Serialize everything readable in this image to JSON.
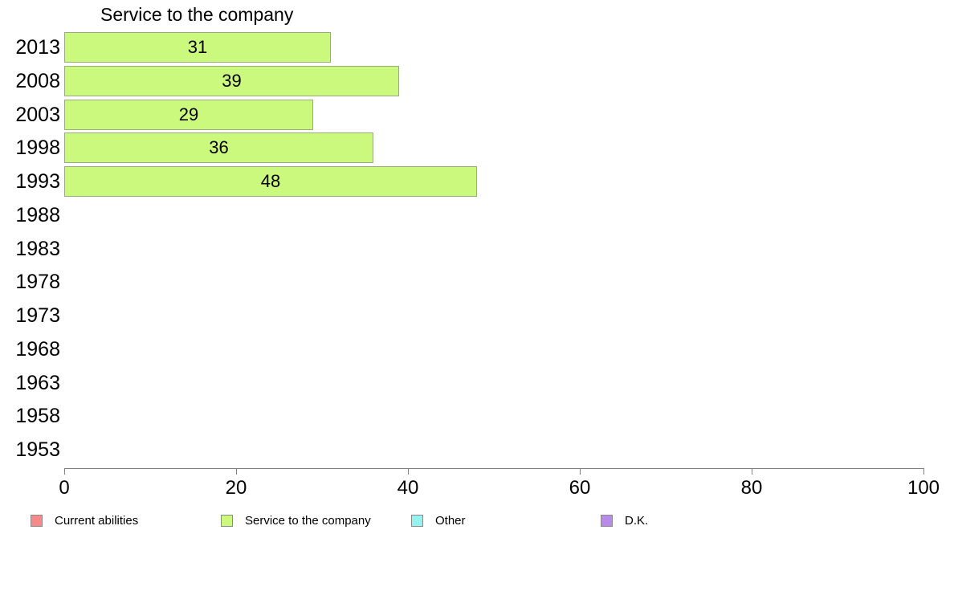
{
  "chart_data": {
    "type": "bar",
    "orientation": "horizontal",
    "title": "Service to the company",
    "categories": [
      "2013",
      "2008",
      "2003",
      "1998",
      "1993",
      "1988",
      "1983",
      "1978",
      "1973",
      "1968",
      "1963",
      "1958",
      "1953"
    ],
    "series": [
      {
        "name": "Service to the company",
        "color": "#cbf97e",
        "values": [
          31,
          39,
          29,
          36,
          48,
          null,
          null,
          null,
          null,
          null,
          null,
          null,
          null
        ]
      }
    ],
    "x_axis": {
      "min": 0,
      "max": 100,
      "ticks": [
        0,
        20,
        40,
        60,
        80,
        100
      ]
    },
    "grid": false,
    "legend_position": "bottom",
    "legend": [
      {
        "label": "Current abilities",
        "color": "#f7898a"
      },
      {
        "label": "Service to the company",
        "color": "#cbf97e"
      },
      {
        "label": "Other",
        "color": "#94f2ef"
      },
      {
        "label": "D.K.",
        "color": "#b98ae9"
      }
    ],
    "colors": {
      "axis": "#808080",
      "bar_fill": "#cbf97e",
      "bar_border": "#9aab7d"
    }
  }
}
